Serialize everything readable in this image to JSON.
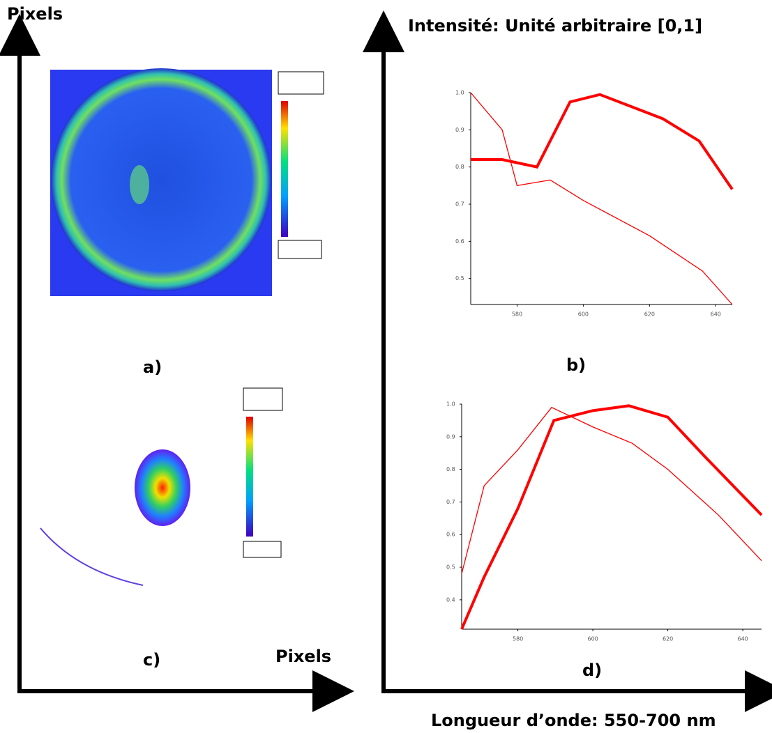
{
  "labels": {
    "left_y_axis": "Pixels",
    "right_y_axis": "Intensité: Unité arbitraire [0,1]",
    "panel_a": "a)",
    "panel_b": "b)",
    "panel_c": "c)",
    "panel_d": "d)",
    "left_x_axis": "Pixels",
    "right_x_axis": "Longueur d’onde: 550-700 nm"
  },
  "chart_data": [
    {
      "type": "line",
      "xlim": [
        566,
        645
      ],
      "xticks": [
        580,
        600,
        620,
        640
      ],
      "ylim": [
        0.43,
        1.0
      ],
      "yticks": [
        {
          "value": 1.0,
          "label": "1.0"
        },
        0.9,
        0.8,
        0.7,
        0.6,
        0.5
      ],
      "series": [
        {
          "color": "#ff0000",
          "width": 4,
          "x": [
            566,
            575.5,
            586,
            596,
            605,
            624,
            635,
            645
          ],
          "values": [
            0.82,
            0.82,
            0.8,
            0.975,
            0.995,
            0.93,
            0.87,
            0.74
          ]
        },
        {
          "color": "#ff0000",
          "width": 1.3,
          "x": [
            566,
            575.5,
            580,
            590,
            600,
            620,
            636,
            645
          ],
          "values": [
            1.0,
            0.9,
            0.75,
            0.765,
            0.71,
            0.615,
            0.52,
            0.43
          ]
        }
      ]
    },
    {
      "type": "line",
      "xlim": [
        565,
        645
      ],
      "xticks": [
        580,
        600,
        620,
        640
      ],
      "ylim": [
        0.31,
        1.0
      ],
      "yticks": [
        {
          "value": 1.0,
          "label": "1.0"
        },
        0.9,
        0.8,
        0.7,
        0.6,
        0.5,
        0.4
      ],
      "series": [
        {
          "color": "#ff0000",
          "width": 4,
          "x": [
            565,
            571,
            580,
            589.6,
            600,
            609.6,
            620,
            629.8,
            645
          ],
          "values": [
            0.31,
            0.47,
            0.68,
            0.95,
            0.98,
            0.995,
            0.96,
            0.84,
            0.66
          ]
        },
        {
          "color": "#ff0000",
          "width": 1.3,
          "x": [
            565,
            571,
            580,
            589,
            600,
            610.5,
            620,
            633.5,
            645
          ],
          "values": [
            0.48,
            0.75,
            0.86,
            0.99,
            0.93,
            0.88,
            0.8,
            0.66,
            0.52
          ]
        }
      ]
    }
  ]
}
